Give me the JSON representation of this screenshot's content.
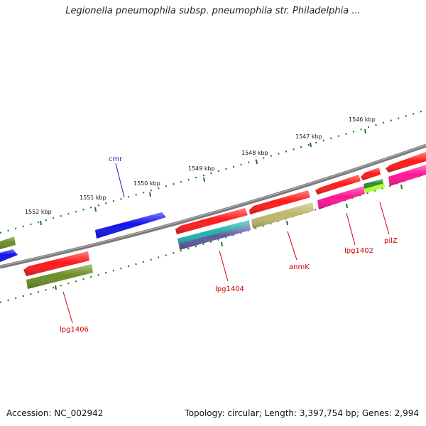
{
  "title": "Legionella pneumophila subsp. pneumophila str. Philadelphia ...",
  "footer": {
    "accession": "Accession: NC_002942",
    "topology": "Topology: circular; Length: 3,397,754 bp; Genes: 2,994"
  },
  "scale_labels": [
    "1546 kbp",
    "1547 kbp",
    "1548 kbp",
    "1549 kbp",
    "1550 kbp",
    "1551 kbp",
    "1552 kbp"
  ],
  "gene_labels": [
    {
      "text": "cmr",
      "color": "#1a1acc"
    },
    {
      "text": "pilZ",
      "color": "#cc0000"
    },
    {
      "text": "lpg1402",
      "color": "#cc0000"
    },
    {
      "text": "anmK",
      "color": "#cc0000"
    },
    {
      "text": "lpg1404",
      "color": "#cc0000"
    },
    {
      "text": "lpg1406",
      "color": "#cc0000"
    }
  ],
  "colors": {
    "backbone": "#7a7a7a",
    "scale_ticks": "#1f7a1f",
    "gene_red": "#ff1a1a",
    "gene_blue": "#1111ee",
    "gene_olive": "#6b8e23",
    "gene_khaki": "#bdb76b",
    "gene_magenta": "#ff1493",
    "gene_cyan": "#20b2aa",
    "gene_slate": "#5a5aa0",
    "gene_green": "#2e8b2e",
    "gene_lime": "#adff2f"
  }
}
